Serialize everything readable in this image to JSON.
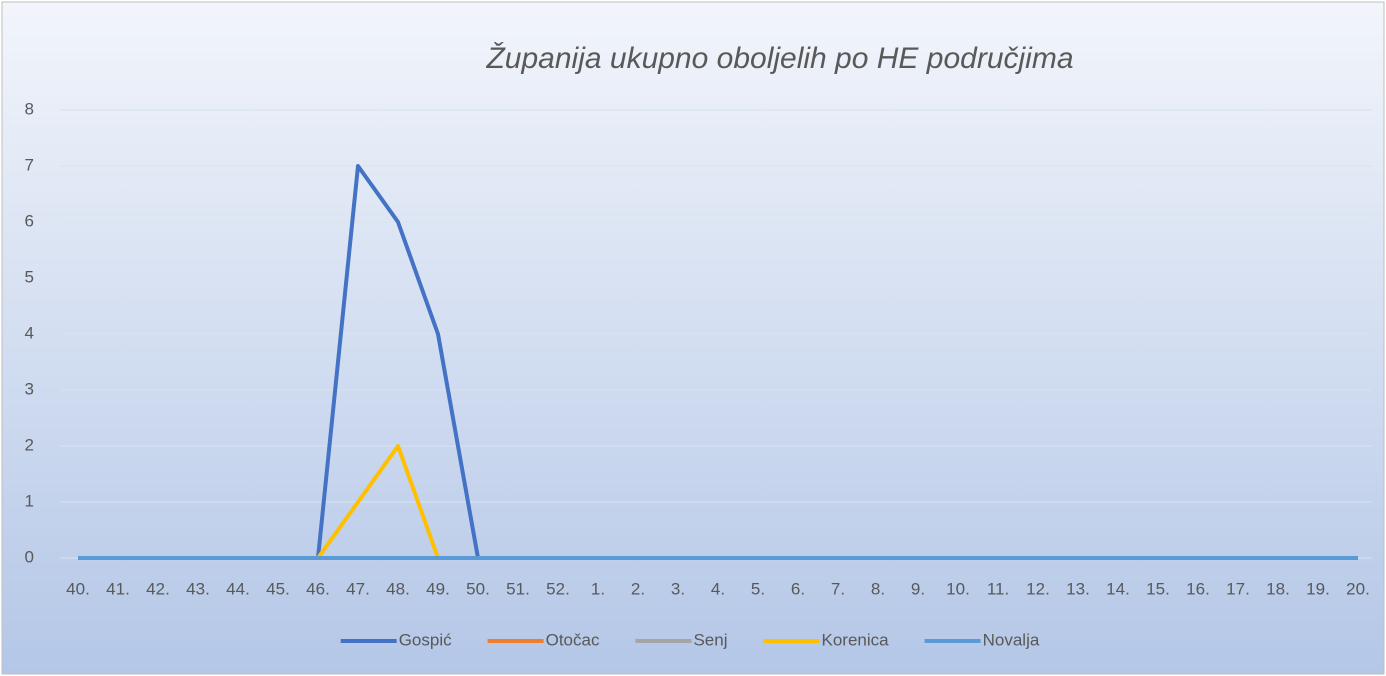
{
  "chart_data": {
    "type": "line",
    "title": "Županija ukupno oboljelih po HE područjima",
    "categories": [
      "40.",
      "41.",
      "42.",
      "43.",
      "44.",
      "45.",
      "46.",
      "47.",
      "48.",
      "49.",
      "50.",
      "51.",
      "52.",
      "1.",
      "2.",
      "3.",
      "4.",
      "5.",
      "6.",
      "7.",
      "8.",
      "9.",
      "10.",
      "11.",
      "12.",
      "13.",
      "14.",
      "15.",
      "16.",
      "17.",
      "18.",
      "19.",
      "20."
    ],
    "series": [
      {
        "name": "Gospić",
        "color": "#4472c4",
        "values": [
          0,
          0,
          0,
          0,
          0,
          0,
          0,
          7,
          6,
          4,
          0,
          0,
          0,
          0,
          0,
          0,
          0,
          0,
          0,
          0,
          0,
          0,
          0,
          0,
          0,
          0,
          0,
          0,
          0,
          0,
          0,
          0,
          0
        ]
      },
      {
        "name": "Otočac",
        "color": "#ed7d31",
        "values": [
          0,
          0,
          0,
          0,
          0,
          0,
          0,
          0,
          0,
          0,
          0,
          0,
          0,
          0,
          0,
          0,
          0,
          0,
          0,
          0,
          0,
          0,
          0,
          0,
          0,
          0,
          0,
          0,
          0,
          0,
          0,
          0,
          0
        ]
      },
      {
        "name": "Senj",
        "color": "#a5a5a5",
        "values": [
          0,
          0,
          0,
          0,
          0,
          0,
          0,
          0,
          0,
          0,
          0,
          0,
          0,
          0,
          0,
          0,
          0,
          0,
          0,
          0,
          0,
          0,
          0,
          0,
          0,
          0,
          0,
          0,
          0,
          0,
          0,
          0,
          0
        ]
      },
      {
        "name": "Korenica",
        "color": "#ffc000",
        "values": [
          0,
          0,
          0,
          0,
          0,
          0,
          0,
          1,
          2,
          0,
          0,
          0,
          0,
          0,
          0,
          0,
          0,
          0,
          0,
          0,
          0,
          0,
          0,
          0,
          0,
          0,
          0,
          0,
          0,
          0,
          0,
          0,
          0
        ]
      },
      {
        "name": "Novalja",
        "color": "#5b9bd5",
        "values": [
          0,
          0,
          0,
          0,
          0,
          0,
          0,
          0,
          0,
          0,
          0,
          0,
          0,
          0,
          0,
          0,
          0,
          0,
          0,
          0,
          0,
          0,
          0,
          0,
          0,
          0,
          0,
          0,
          0,
          0,
          0,
          0,
          0
        ]
      }
    ],
    "ylim": [
      0,
      8
    ],
    "yticks": [
      0,
      1,
      2,
      3,
      4,
      5,
      6,
      7,
      8
    ],
    "grid": true,
    "legend": "bottom"
  }
}
